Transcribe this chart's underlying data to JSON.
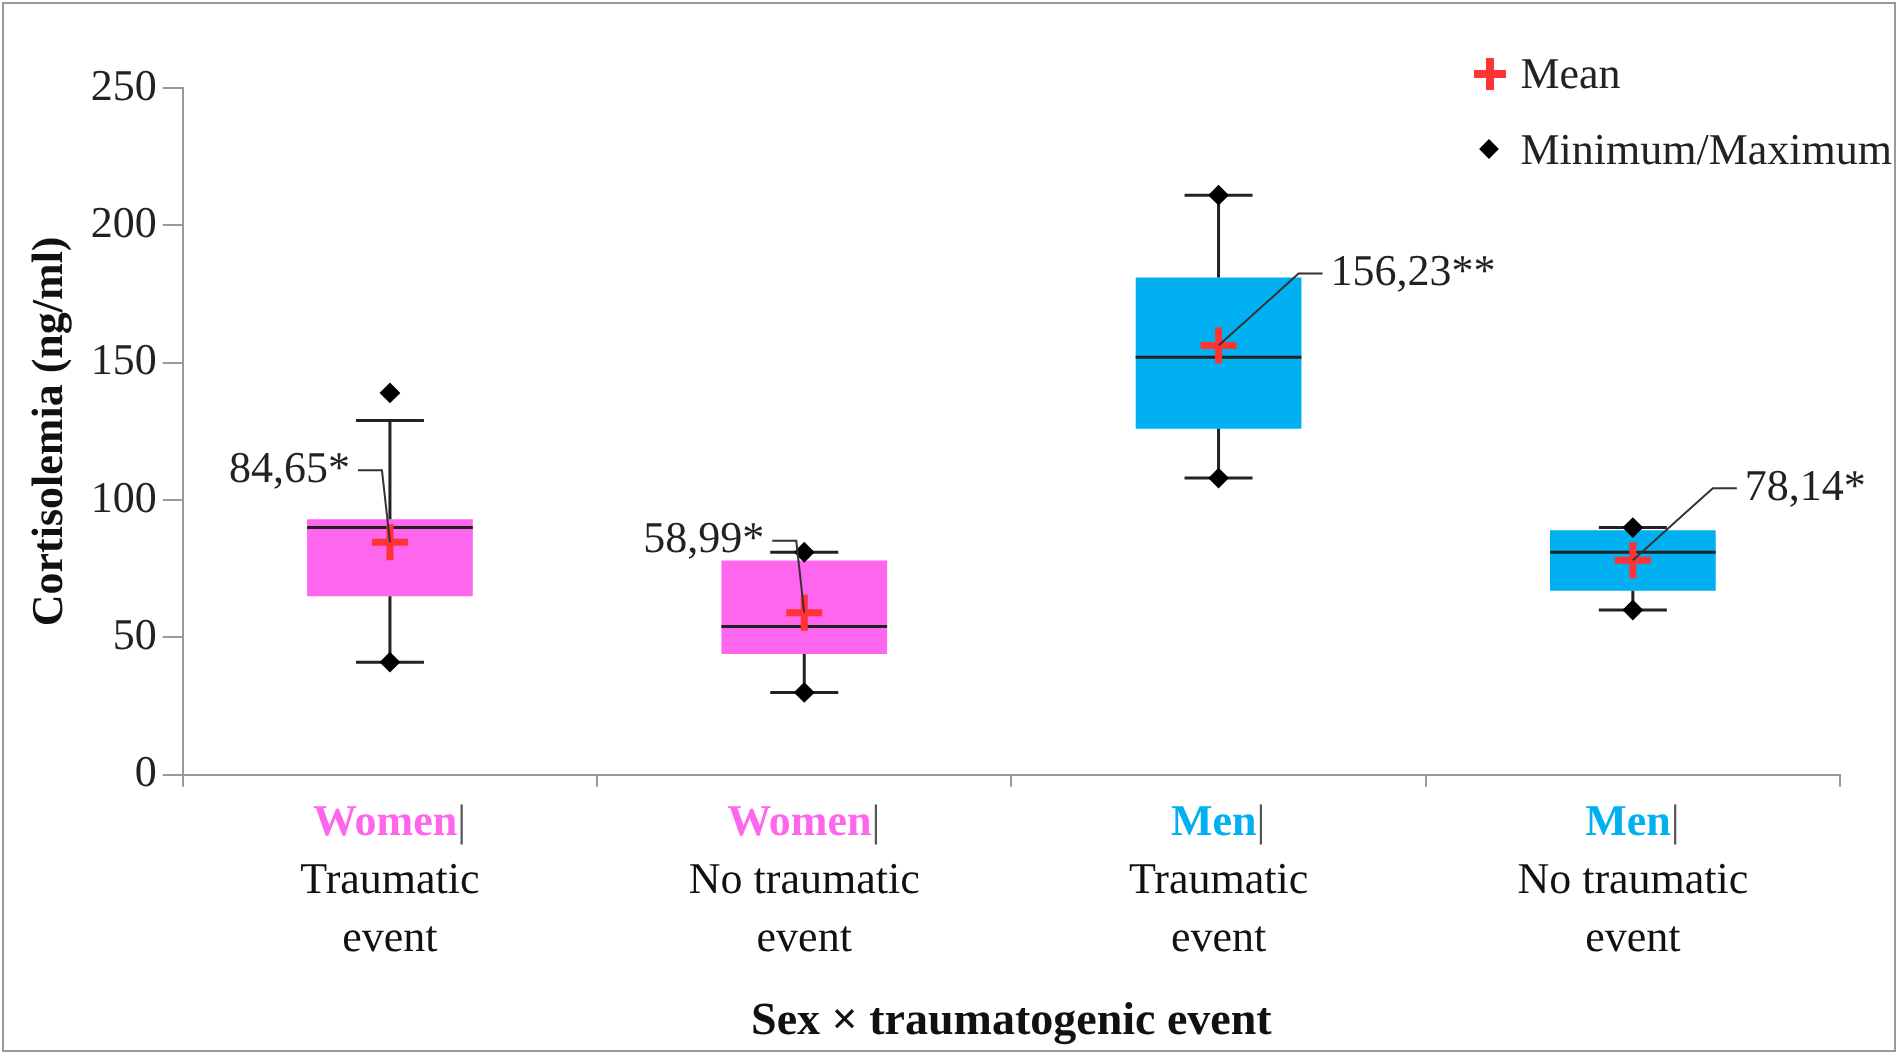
{
  "chart_data": {
    "type": "box",
    "ylabel": "Cortisolemia (ng/ml)",
    "xlabel": "Sex × traumatogenic event",
    "categories": [
      "Women| Traumatic event",
      "Women| No traumatic event",
      "Men| Traumatic event",
      "Men| No traumatic event"
    ],
    "ylim": [
      0,
      250
    ],
    "yticks": [
      0,
      50,
      100,
      150,
      200,
      250
    ],
    "grid": false,
    "legend": "top right",
    "series": [
      {
        "type": "box",
        "colors": [
          "#ff66ee",
          "#ff66ee",
          "#00b0f0",
          "#00b0f0"
        ],
        "boxes": [
          {
            "low": 41,
            "q1": 65,
            "median": 90,
            "q3": 93,
            "high": 129
          },
          {
            "low": 30,
            "q1": 44,
            "median": 54,
            "q3": 78,
            "high": 81
          },
          {
            "low": 108,
            "q1": 126,
            "median": 152,
            "q3": 181,
            "high": 211
          },
          {
            "low": 60,
            "q1": 67,
            "median": 81,
            "q3": 89,
            "high": 90
          }
        ]
      },
      {
        "type": "scatter",
        "name": "Mean",
        "color": "#ff3333",
        "marker": "cross",
        "values": [
          84.65,
          58.99,
          156.23,
          78.14
        ]
      },
      {
        "type": "scatter",
        "name": "Minimum/Maximum",
        "color": "#000000",
        "marker": "diamond",
        "x": [
          "Women| Traumatic event",
          "Women| Traumatic event",
          "Women| No traumatic event",
          "Women| No traumatic event",
          "Men| Traumatic event",
          "Men| Traumatic event",
          "Men| No traumatic event",
          "Men| No traumatic event"
        ],
        "values": [
          41,
          139,
          30,
          81,
          108,
          211,
          60,
          90
        ]
      }
    ],
    "annotations": [
      {
        "text": "84,65*",
        "x": "Women| Traumatic event",
        "y": 84.65
      },
      {
        "text": "58,99*",
        "x": "Women| No traumatic event",
        "y": 58.99
      },
      {
        "text": "156,23**",
        "x": "Men| Traumatic event",
        "y": 156.23
      },
      {
        "text": "78,14*",
        "x": "Men| No traumatic event",
        "y": 78.14
      }
    ]
  }
}
